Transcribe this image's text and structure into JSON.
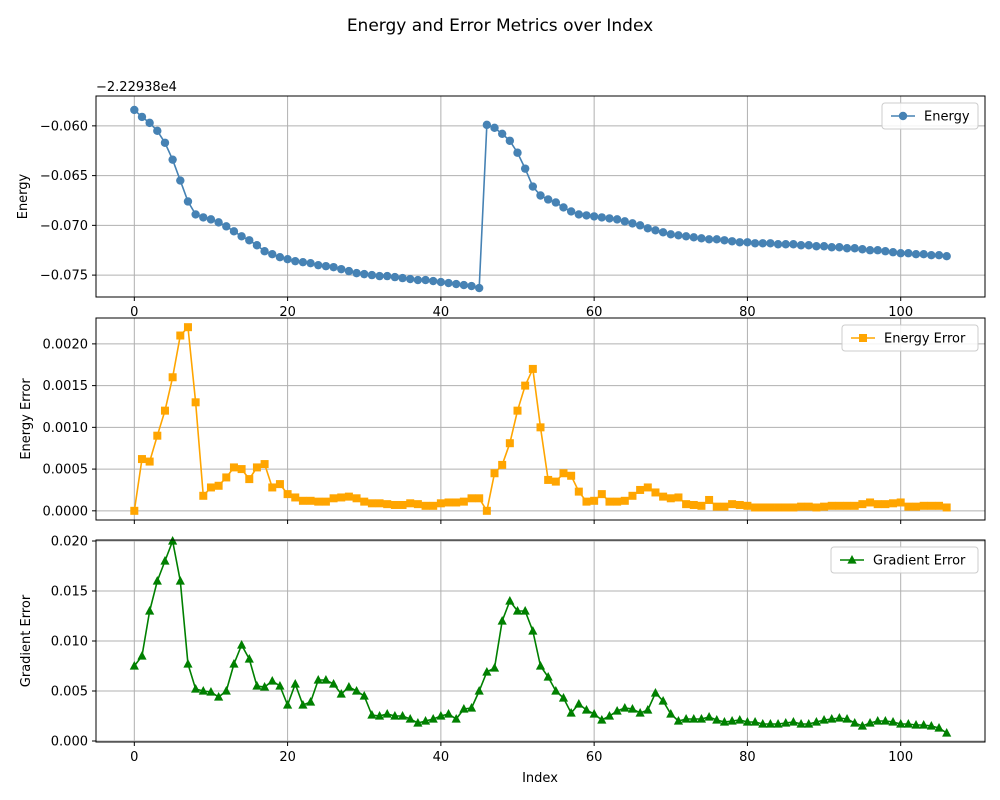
{
  "suptitle": "Energy and Error Metrics over Index",
  "xlabel": "Index",
  "chart_data": [
    {
      "type": "line",
      "marker": "circle",
      "color": "#4682b4",
      "ylabel": "Energy",
      "offset_label": "−2.22938e4",
      "legend": "Energy",
      "legend_position": "top-right",
      "grid": true,
      "xlim": [
        -5,
        111
      ],
      "ylim": [
        -0.0772,
        -0.057
      ],
      "xticks": [
        0,
        20,
        40,
        60,
        80,
        100
      ],
      "xtick_labels": [
        "0",
        "20",
        "40",
        "60",
        "80",
        "100"
      ],
      "yticks": [
        -0.075,
        -0.07,
        -0.065,
        -0.06
      ],
      "ytick_labels": [
        "−0.075",
        "−0.070",
        "−0.065",
        "−0.060"
      ],
      "x": [
        0,
        1,
        2,
        3,
        4,
        5,
        6,
        7,
        8,
        9,
        10,
        11,
        12,
        13,
        14,
        15,
        16,
        17,
        18,
        19,
        20,
        21,
        22,
        23,
        24,
        25,
        26,
        27,
        28,
        29,
        30,
        31,
        32,
        33,
        34,
        35,
        36,
        37,
        38,
        39,
        40,
        41,
        42,
        43,
        44,
        45,
        46,
        47,
        48,
        49,
        50,
        51,
        52,
        53,
        54,
        55,
        56,
        57,
        58,
        59,
        60,
        61,
        62,
        63,
        64,
        65,
        66,
        67,
        68,
        69,
        70,
        71,
        72,
        73,
        74,
        75,
        76,
        77,
        78,
        79,
        80,
        81,
        82,
        83,
        84,
        85,
        86,
        87,
        88,
        89,
        90,
        91,
        92,
        93,
        94,
        95,
        96,
        97,
        98,
        99,
        100,
        101,
        102,
        103,
        104,
        105,
        106
      ],
      "values": [
        -0.0584,
        -0.0591,
        -0.0597,
        -0.0605,
        -0.0617,
        -0.0634,
        -0.0655,
        -0.0676,
        -0.0689,
        -0.0692,
        -0.0694,
        -0.0697,
        -0.0701,
        -0.0706,
        -0.0711,
        -0.0715,
        -0.072,
        -0.0726,
        -0.0729,
        -0.0732,
        -0.0734,
        -0.0736,
        -0.0737,
        -0.0738,
        -0.074,
        -0.0741,
        -0.0742,
        -0.0744,
        -0.0746,
        -0.0748,
        -0.0749,
        -0.075,
        -0.0751,
        -0.0751,
        -0.0752,
        -0.0753,
        -0.0754,
        -0.0755,
        -0.0755,
        -0.0756,
        -0.0757,
        -0.0758,
        -0.0759,
        -0.076,
        -0.0761,
        -0.0763,
        -0.0599,
        -0.0602,
        -0.0608,
        -0.0615,
        -0.0627,
        -0.0643,
        -0.0661,
        -0.067,
        -0.0674,
        -0.0677,
        -0.0682,
        -0.0686,
        -0.0689,
        -0.069,
        -0.0691,
        -0.0692,
        -0.0693,
        -0.0694,
        -0.0696,
        -0.0698,
        -0.07,
        -0.0703,
        -0.0705,
        -0.0707,
        -0.0709,
        -0.071,
        -0.0711,
        -0.0712,
        -0.0713,
        -0.0714,
        -0.0714,
        -0.0715,
        -0.0716,
        -0.0717,
        -0.0717,
        -0.0718,
        -0.0718,
        -0.0718,
        -0.0719,
        -0.0719,
        -0.0719,
        -0.072,
        -0.072,
        -0.0721,
        -0.0721,
        -0.0722,
        -0.0722,
        -0.0723,
        -0.0723,
        -0.0724,
        -0.0725,
        -0.0725,
        -0.0726,
        -0.0727,
        -0.0728,
        -0.0728,
        -0.0729,
        -0.0729,
        -0.073,
        -0.073,
        -0.0731
      ]
    },
    {
      "type": "line",
      "marker": "square",
      "color": "#ffa500",
      "ylabel": "Energy Error",
      "legend": "Energy Error",
      "legend_position": "top-right",
      "grid": true,
      "xlim": [
        -5,
        111
      ],
      "ylim": [
        -0.00011,
        0.00231
      ],
      "xticks": [
        0,
        20,
        40,
        60,
        80,
        100
      ],
      "yticks": [
        0.0,
        0.0005,
        0.001,
        0.0015,
        0.002
      ],
      "ytick_labels": [
        "0.0000",
        "0.0005",
        "0.0010",
        "0.0015",
        "0.0020"
      ],
      "x": [
        0,
        1,
        2,
        3,
        4,
        5,
        6,
        7,
        8,
        9,
        10,
        11,
        12,
        13,
        14,
        15,
        16,
        17,
        18,
        19,
        20,
        21,
        22,
        23,
        24,
        25,
        26,
        27,
        28,
        29,
        30,
        31,
        32,
        33,
        34,
        35,
        36,
        37,
        38,
        39,
        40,
        41,
        42,
        43,
        44,
        45,
        46,
        47,
        48,
        49,
        50,
        51,
        52,
        53,
        54,
        55,
        56,
        57,
        58,
        59,
        60,
        61,
        62,
        63,
        64,
        65,
        66,
        67,
        68,
        69,
        70,
        71,
        72,
        73,
        74,
        75,
        76,
        77,
        78,
        79,
        80,
        81,
        82,
        83,
        84,
        85,
        86,
        87,
        88,
        89,
        90,
        91,
        92,
        93,
        94,
        95,
        96,
        97,
        98,
        99,
        100,
        101,
        102,
        103,
        104,
        105,
        106
      ],
      "values": [
        0.0,
        0.00062,
        0.00059,
        0.0009,
        0.0012,
        0.0016,
        0.0021,
        0.0022,
        0.0013,
        0.00018,
        0.00028,
        0.0003,
        0.0004,
        0.00052,
        0.0005,
        0.00038,
        0.00052,
        0.00056,
        0.00028,
        0.00032,
        0.0002,
        0.00016,
        0.00012,
        0.00012,
        0.00011,
        0.00011,
        0.00015,
        0.00016,
        0.00017,
        0.00015,
        0.00011,
        9e-05,
        9e-05,
        8e-05,
        7e-05,
        7e-05,
        9e-05,
        8e-05,
        6e-05,
        6e-05,
        9e-05,
        0.0001,
        0.0001,
        0.00011,
        0.00015,
        0.00015,
        0.0,
        0.00045,
        0.00055,
        0.00081,
        0.0012,
        0.0015,
        0.0017,
        0.001,
        0.00037,
        0.00035,
        0.00045,
        0.00042,
        0.00023,
        0.00011,
        0.00012,
        0.0002,
        0.00011,
        0.00011,
        0.00012,
        0.00018,
        0.00025,
        0.00028,
        0.00022,
        0.00017,
        0.00015,
        0.00016,
        8e-05,
        7e-05,
        6e-05,
        0.00013,
        5e-05,
        5e-05,
        8e-05,
        7e-05,
        6e-05,
        4e-05,
        4e-05,
        4e-05,
        4e-05,
        4e-05,
        4e-05,
        5e-05,
        5e-05,
        4e-05,
        5e-05,
        6e-05,
        6e-05,
        6e-05,
        6e-05,
        8e-05,
        0.0001,
        8e-05,
        8e-05,
        9e-05,
        0.0001,
        5e-05,
        5e-05,
        6e-05,
        6e-05,
        6e-05,
        4e-05
      ]
    },
    {
      "type": "line",
      "marker": "triangle",
      "color": "#008000",
      "ylabel": "Gradient Error",
      "legend": "Gradient Error",
      "legend_position": "top-right",
      "grid": true,
      "xlim": [
        -5,
        111
      ],
      "ylim": [
        -0.0001,
        0.0201
      ],
      "xticks": [
        0,
        20,
        40,
        60,
        80,
        100
      ],
      "xtick_labels": [
        "0",
        "20",
        "40",
        "60",
        "80",
        "100"
      ],
      "yticks": [
        0.0,
        0.005,
        0.01,
        0.015,
        0.02
      ],
      "ytick_labels": [
        "0.000",
        "0.005",
        "0.010",
        "0.015",
        "0.020"
      ],
      "x": [
        0,
        1,
        2,
        3,
        4,
        5,
        6,
        7,
        8,
        9,
        10,
        11,
        12,
        13,
        14,
        15,
        16,
        17,
        18,
        19,
        20,
        21,
        22,
        23,
        24,
        25,
        26,
        27,
        28,
        29,
        30,
        31,
        32,
        33,
        34,
        35,
        36,
        37,
        38,
        39,
        40,
        41,
        42,
        43,
        44,
        45,
        46,
        47,
        48,
        49,
        50,
        51,
        52,
        53,
        54,
        55,
        56,
        57,
        58,
        59,
        60,
        61,
        62,
        63,
        64,
        65,
        66,
        67,
        68,
        69,
        70,
        71,
        72,
        73,
        74,
        75,
        76,
        77,
        78,
        79,
        80,
        81,
        82,
        83,
        84,
        85,
        86,
        87,
        88,
        89,
        90,
        91,
        92,
        93,
        94,
        95,
        96,
        97,
        98,
        99,
        100,
        101,
        102,
        103,
        104,
        105,
        106
      ],
      "values": [
        0.0075,
        0.0085,
        0.013,
        0.016,
        0.018,
        0.02,
        0.016,
        0.0077,
        0.0052,
        0.005,
        0.0049,
        0.0044,
        0.005,
        0.0077,
        0.0096,
        0.0082,
        0.0055,
        0.0054,
        0.006,
        0.0055,
        0.0036,
        0.0057,
        0.0036,
        0.0039,
        0.0061,
        0.0061,
        0.0057,
        0.0047,
        0.0054,
        0.005,
        0.0045,
        0.0026,
        0.0025,
        0.0027,
        0.0025,
        0.0025,
        0.0022,
        0.0018,
        0.002,
        0.0022,
        0.0025,
        0.0027,
        0.0022,
        0.0032,
        0.0033,
        0.005,
        0.0069,
        0.0073,
        0.012,
        0.014,
        0.013,
        0.013,
        0.011,
        0.0075,
        0.0064,
        0.005,
        0.0043,
        0.0028,
        0.0037,
        0.0031,
        0.0027,
        0.0021,
        0.0025,
        0.003,
        0.0033,
        0.0032,
        0.0028,
        0.0031,
        0.0048,
        0.004,
        0.0027,
        0.002,
        0.0022,
        0.0022,
        0.0022,
        0.0024,
        0.0021,
        0.0019,
        0.002,
        0.0021,
        0.0019,
        0.0019,
        0.0017,
        0.0017,
        0.0017,
        0.0018,
        0.0019,
        0.0017,
        0.0017,
        0.0019,
        0.0021,
        0.0022,
        0.0023,
        0.0022,
        0.0018,
        0.0015,
        0.0018,
        0.002,
        0.002,
        0.0019,
        0.0017,
        0.0017,
        0.0016,
        0.0016,
        0.0015,
        0.0013,
        0.0008
      ]
    }
  ]
}
